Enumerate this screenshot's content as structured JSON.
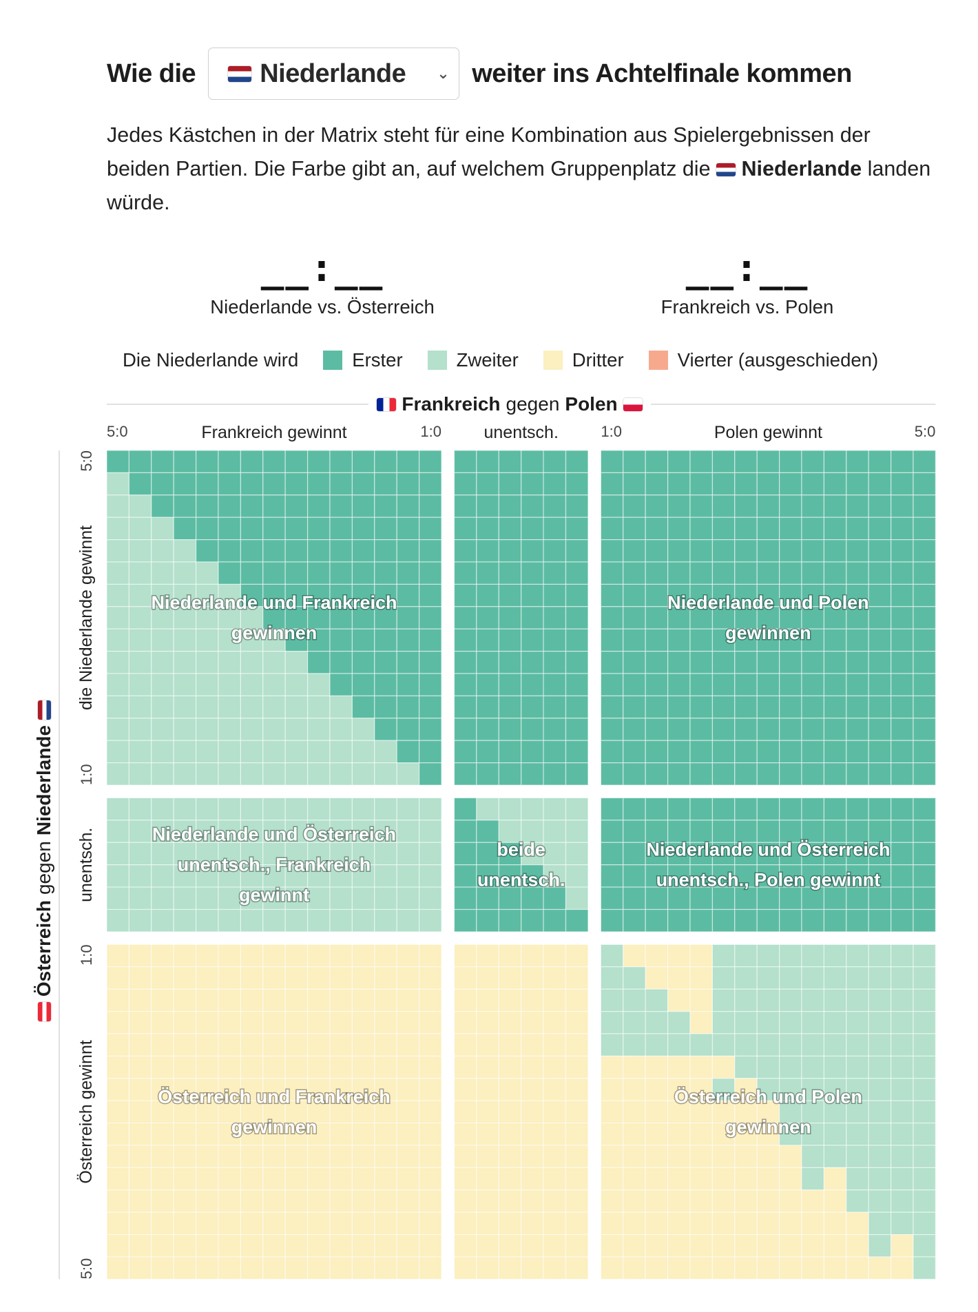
{
  "headline": {
    "prefix": "Wie die",
    "selected_team": "Niederlande",
    "suffix": "weiter ins Achtelfinale kommen"
  },
  "intro": {
    "part1": "Jedes Kästchen in der Matrix steht für eine Kombination aus Spielergebnissen der beiden Partien. Die Farbe gibt an, auf welchem Gruppenplatz die",
    "team": "Niederlande",
    "part2": "landen würde."
  },
  "matches": [
    {
      "score": "__:__",
      "label": "Niederlande vs. Österreich"
    },
    {
      "score": "__:__",
      "label": "Frankreich vs. Polen"
    }
  ],
  "legend": {
    "prefix": "Die Niederlande wird",
    "items": [
      {
        "label": "Erster",
        "color": "#5cbca3"
      },
      {
        "label": "Zweiter",
        "color": "#b4e0cc"
      },
      {
        "label": "Dritter",
        "color": "#fcefc0"
      },
      {
        "label": "Vierter (ausgeschieden)",
        "color": "#f7a98e"
      }
    ]
  },
  "chart_data": {
    "type": "heatmap",
    "title_top": {
      "team_a": "Frankreich",
      "word": "gegen",
      "team_b": "Polen"
    },
    "title_left": {
      "team_a": "Österreich",
      "word": "gegen",
      "team_b": "Niederlande"
    },
    "columns": [
      {
        "name": "Frankreich gewinnt",
        "tick_start": "5:0",
        "tick_end": "1:0",
        "cells": 15
      },
      {
        "name": "unentsch.",
        "cells": 6
      },
      {
        "name": "Polen gewinnt",
        "tick_start": "1:0",
        "tick_end": "5:0",
        "cells": 15
      }
    ],
    "rows": [
      {
        "name": "die Niederlande gewinnt",
        "tick_start": "5:0",
        "tick_end": "1:0",
        "cells": 15
      },
      {
        "name": "unentsch.",
        "cells": 6
      },
      {
        "name": "Österreich gewinnt",
        "tick_start": "1:0",
        "tick_end": "5:0",
        "cells": 15
      }
    ],
    "color_scale": {
      "1": "#5cbca3",
      "2": "#b4e0cc",
      "3": "#fcefc0",
      "4": "#f7a98e"
    },
    "blocks": [
      {
        "row": 0,
        "col": 0,
        "label": [
          "Niederlande und Frankreich",
          "gewinnen"
        ],
        "places": [
          "111111111111111",
          "211111111111111",
          "221111111111111",
          "222111111111111",
          "222211111111111",
          "222221111111111",
          "222222111111111",
          "222222211111111",
          "222222221111111",
          "222222222111111",
          "222222222211111",
          "222222222221111",
          "222222222222111",
          "222222222222211",
          "222222222222221"
        ]
      },
      {
        "row": 0,
        "col": 1,
        "label": [],
        "places": [
          "111111",
          "111111",
          "111111",
          "111111",
          "111111",
          "111111",
          "111111",
          "111111",
          "111111",
          "111111",
          "111111",
          "111111",
          "111111",
          "111111",
          "111111"
        ]
      },
      {
        "row": 0,
        "col": 2,
        "label": [
          "Niederlande und Polen",
          "gewinnen"
        ],
        "places": [
          "111111111111111",
          "111111111111111",
          "111111111111111",
          "111111111111111",
          "111111111111111",
          "111111111111111",
          "111111111111111",
          "111111111111111",
          "111111111111111",
          "111111111111111",
          "111111111111111",
          "111111111111111",
          "111111111111111",
          "111111111111111",
          "111111111111111"
        ]
      },
      {
        "row": 1,
        "col": 0,
        "label": [
          "Niederlande und Österreich",
          "unentsch., Frankreich",
          "gewinnt"
        ],
        "places": [
          "222222222222222",
          "222222222222222",
          "222222222222222",
          "222222222222222",
          "222222222222222",
          "222222222222222"
        ]
      },
      {
        "row": 1,
        "col": 1,
        "label": [
          "beide",
          "unentsch."
        ],
        "places": [
          "122222",
          "112222",
          "111222",
          "111122",
          "111112",
          "111111"
        ]
      },
      {
        "row": 1,
        "col": 2,
        "label": [
          "Niederlande und Österreich",
          "unentsch., Polen gewinnt"
        ],
        "places": [
          "111111111111111",
          "111111111111111",
          "111111111111111",
          "111111111111111",
          "111111111111111",
          "111111111111111"
        ]
      },
      {
        "row": 2,
        "col": 0,
        "label": [
          "Österreich und Frankreich",
          "gewinnen"
        ],
        "places": [
          "333333333333333",
          "333333333333333",
          "333333333333333",
          "333333333333333",
          "333333333333333",
          "333333333333333",
          "333333333333333",
          "333333333333333",
          "333333333333333",
          "333333333333333",
          "333333333333333",
          "333333333333333",
          "333333333333333",
          "333333333333333",
          "333333333333333"
        ]
      },
      {
        "row": 2,
        "col": 1,
        "label": [],
        "places": [
          "333333",
          "333333",
          "333333",
          "333333",
          "333333",
          "333333",
          "333333",
          "333333",
          "333333",
          "333333",
          "333333",
          "333333",
          "333333",
          "333333",
          "333333"
        ]
      },
      {
        "row": 2,
        "col": 2,
        "label": [
          "Österreich und Polen",
          "gewinnen"
        ],
        "places": [
          "233332222222222",
          "223332222222222",
          "222332222222222",
          "222232222222222",
          "222222222222222",
          "333333222222222",
          "333332322222222",
          "333333332222222",
          "333333332222222",
          "333333333222222",
          "333333333232222",
          "333333333332222",
          "333333333333222",
          "333333333333232",
          "333333333333332"
        ]
      }
    ]
  }
}
